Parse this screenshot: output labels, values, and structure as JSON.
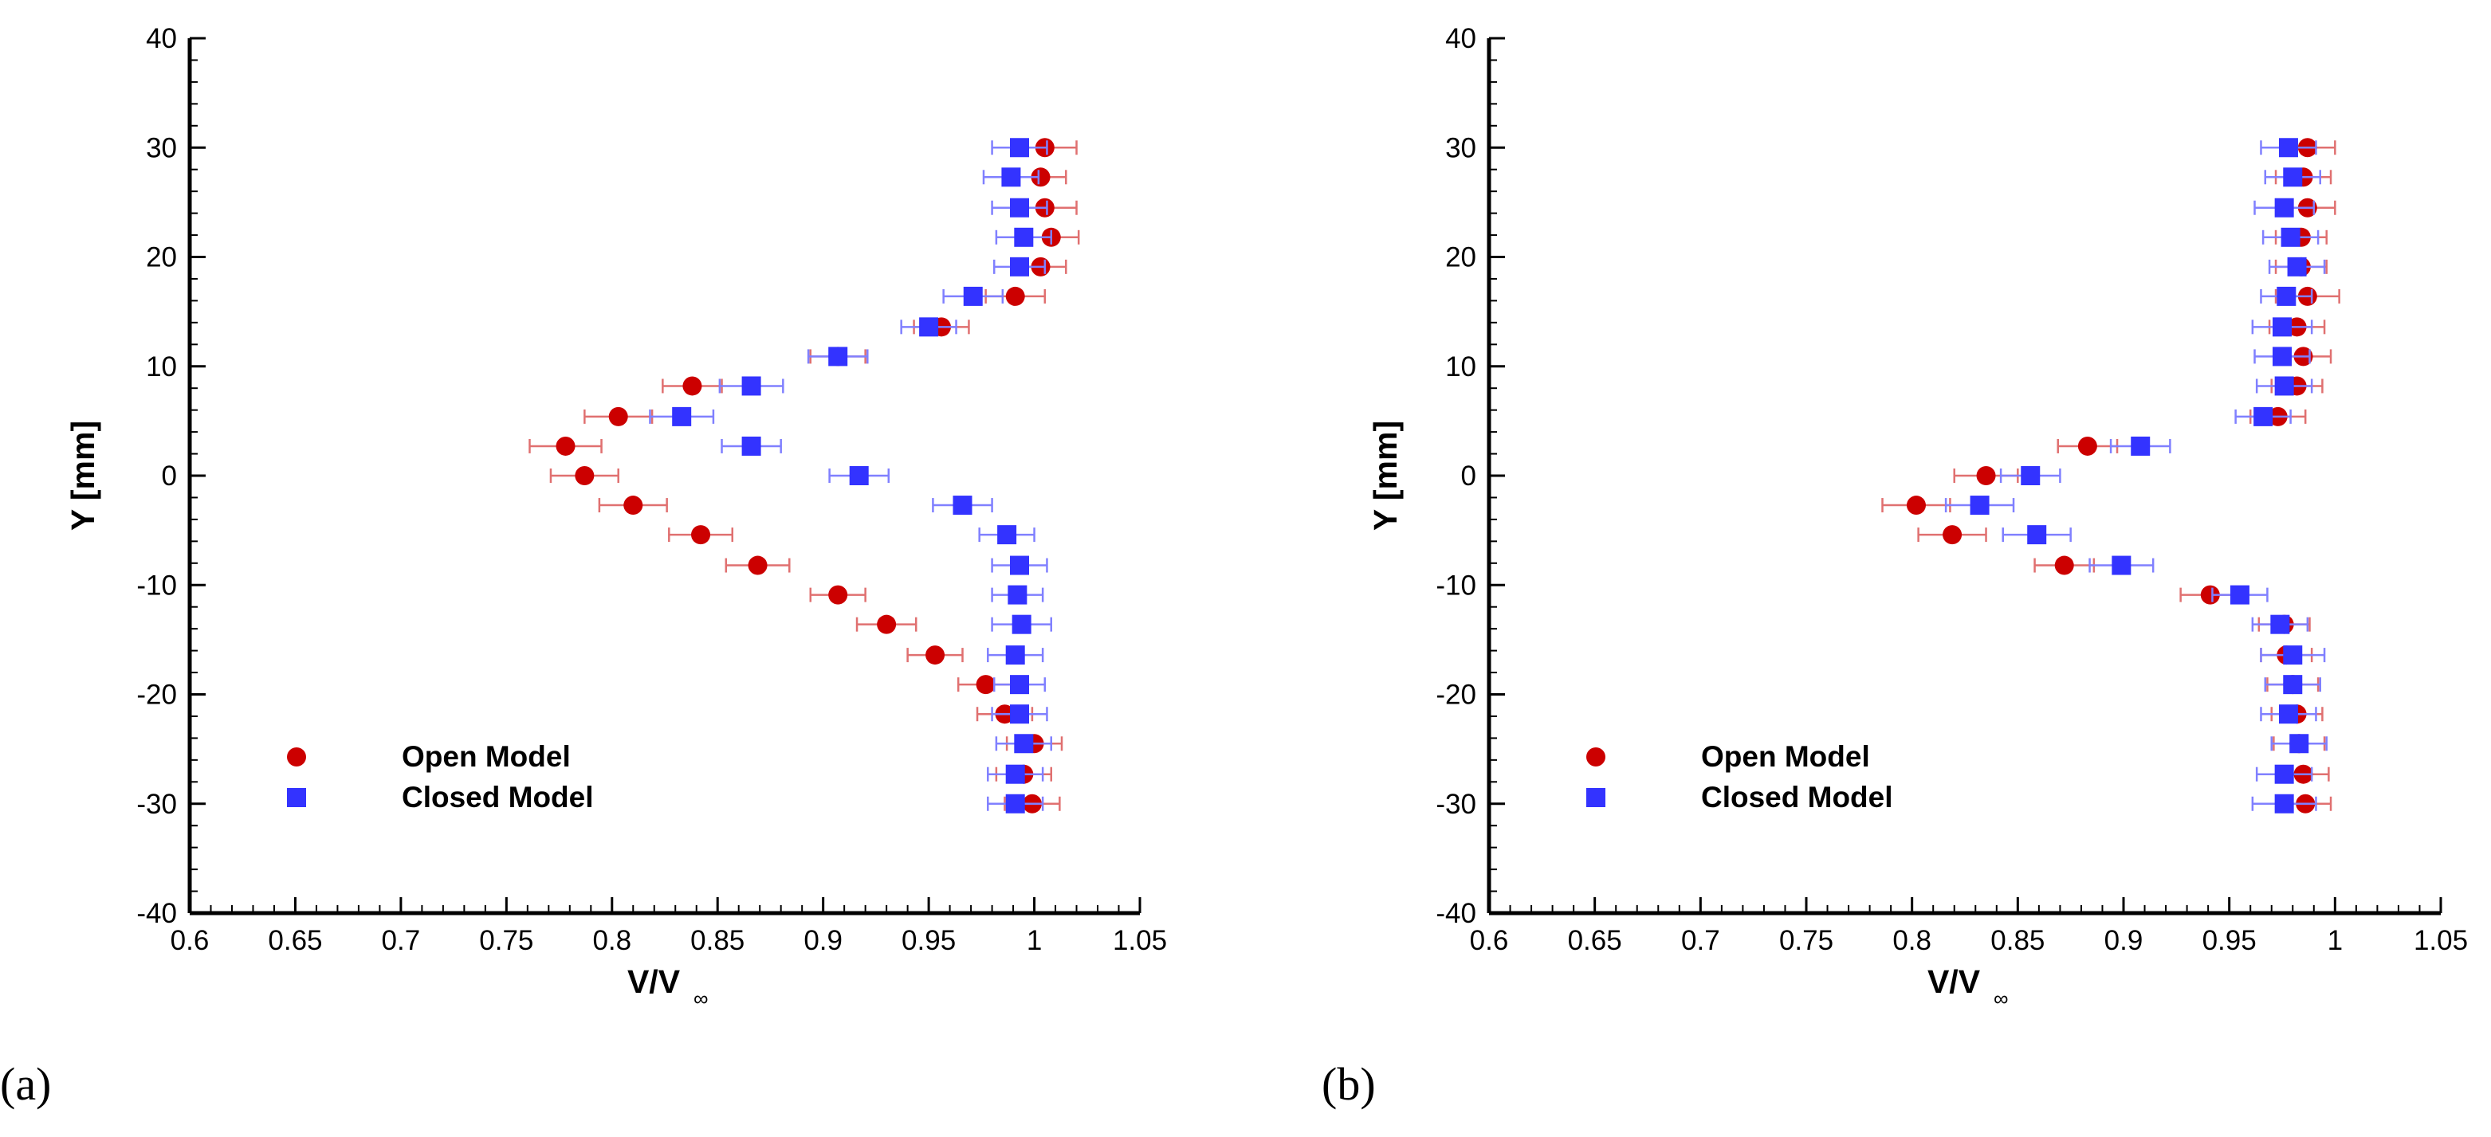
{
  "colors": {
    "open": "#cc0000",
    "open_err": "#e07070",
    "closed": "#3333ff",
    "closed_err": "#8080ff",
    "axis": "#000000"
  },
  "chart_data": [
    {
      "type": "scatter",
      "panel_label": "(a)",
      "xlabel": "V/V",
      "xlabel_sub": "∞",
      "ylabel": "Y [mm]",
      "xlim": [
        0.6,
        1.05
      ],
      "ylim": [
        -40,
        40
      ],
      "xticks": [
        "0.6",
        "0.65",
        "0.7",
        "0.75",
        "0.8",
        "0.85",
        "0.9",
        "0.95",
        "1",
        "1.05"
      ],
      "yticks": [
        "-40",
        "-30",
        "-20",
        "-10",
        "0",
        "10",
        "20",
        "30",
        "40"
      ],
      "grid": false,
      "legend_position": "bottom-left",
      "series": [
        {
          "name": "Open Model",
          "marker": "circle",
          "points": [
            {
              "x": 1.005,
              "y": 30.0,
              "err": 0.015
            },
            {
              "x": 1.003,
              "y": 27.3,
              "err": 0.012
            },
            {
              "x": 1.005,
              "y": 24.5,
              "err": 0.015
            },
            {
              "x": 1.008,
              "y": 21.8,
              "err": 0.013
            },
            {
              "x": 1.003,
              "y": 19.1,
              "err": 0.012
            },
            {
              "x": 0.991,
              "y": 16.4,
              "err": 0.014
            },
            {
              "x": 0.956,
              "y": 13.6,
              "err": 0.013
            },
            {
              "x": 0.907,
              "y": 10.9,
              "err": 0.013
            },
            {
              "x": 0.838,
              "y": 8.2,
              "err": 0.014
            },
            {
              "x": 0.803,
              "y": 5.4,
              "err": 0.016
            },
            {
              "x": 0.778,
              "y": 2.7,
              "err": 0.017
            },
            {
              "x": 0.787,
              "y": 0.0,
              "err": 0.016
            },
            {
              "x": 0.81,
              "y": -2.7,
              "err": 0.016
            },
            {
              "x": 0.842,
              "y": -5.4,
              "err": 0.015
            },
            {
              "x": 0.869,
              "y": -8.2,
              "err": 0.015
            },
            {
              "x": 0.907,
              "y": -10.9,
              "err": 0.013
            },
            {
              "x": 0.93,
              "y": -13.6,
              "err": 0.014
            },
            {
              "x": 0.953,
              "y": -16.4,
              "err": 0.013
            },
            {
              "x": 0.977,
              "y": -19.1,
              "err": 0.013
            },
            {
              "x": 0.986,
              "y": -21.8,
              "err": 0.013
            },
            {
              "x": 1.0,
              "y": -24.5,
              "err": 0.013
            },
            {
              "x": 0.995,
              "y": -27.3,
              "err": 0.013
            },
            {
              "x": 0.999,
              "y": -30.0,
              "err": 0.013
            }
          ]
        },
        {
          "name": "Closed Model",
          "marker": "square",
          "points": [
            {
              "x": 0.993,
              "y": 30.0,
              "err": 0.013
            },
            {
              "x": 0.989,
              "y": 27.3,
              "err": 0.013
            },
            {
              "x": 0.993,
              "y": 24.5,
              "err": 0.013
            },
            {
              "x": 0.995,
              "y": 21.8,
              "err": 0.013
            },
            {
              "x": 0.993,
              "y": 19.1,
              "err": 0.012
            },
            {
              "x": 0.971,
              "y": 16.4,
              "err": 0.014
            },
            {
              "x": 0.95,
              "y": 13.6,
              "err": 0.013
            },
            {
              "x": 0.907,
              "y": 10.9,
              "err": 0.014
            },
            {
              "x": 0.866,
              "y": 8.2,
              "err": 0.015
            },
            {
              "x": 0.833,
              "y": 5.4,
              "err": 0.015
            },
            {
              "x": 0.866,
              "y": 2.7,
              "err": 0.014
            },
            {
              "x": 0.917,
              "y": 0.0,
              "err": 0.014
            },
            {
              "x": 0.966,
              "y": -2.7,
              "err": 0.014
            },
            {
              "x": 0.987,
              "y": -5.4,
              "err": 0.013
            },
            {
              "x": 0.993,
              "y": -8.2,
              "err": 0.013
            },
            {
              "x": 0.992,
              "y": -10.9,
              "err": 0.012
            },
            {
              "x": 0.994,
              "y": -13.6,
              "err": 0.014
            },
            {
              "x": 0.991,
              "y": -16.4,
              "err": 0.013
            },
            {
              "x": 0.993,
              "y": -19.1,
              "err": 0.012
            },
            {
              "x": 0.993,
              "y": -21.8,
              "err": 0.013
            },
            {
              "x": 0.995,
              "y": -24.5,
              "err": 0.013
            },
            {
              "x": 0.991,
              "y": -27.3,
              "err": 0.013
            },
            {
              "x": 0.991,
              "y": -30.0,
              "err": 0.013
            }
          ]
        }
      ]
    },
    {
      "type": "scatter",
      "panel_label": "(b)",
      "xlabel": "V/V",
      "xlabel_sub": "∞",
      "ylabel": "Y [mm]",
      "xlim": [
        0.6,
        1.05
      ],
      "ylim": [
        -40,
        40
      ],
      "xticks": [
        "0.6",
        "0.65",
        "0.7",
        "0.75",
        "0.8",
        "0.85",
        "0.9",
        "0.95",
        "1",
        "1.05"
      ],
      "yticks": [
        "-40",
        "-30",
        "-20",
        "-10",
        "0",
        "10",
        "20",
        "30",
        "40"
      ],
      "grid": false,
      "legend_position": "bottom-left",
      "series": [
        {
          "name": "Open Model",
          "marker": "circle",
          "points": [
            {
              "x": 0.987,
              "y": 30.0,
              "err": 0.013
            },
            {
              "x": 0.985,
              "y": 27.3,
              "err": 0.013
            },
            {
              "x": 0.987,
              "y": 24.5,
              "err": 0.013
            },
            {
              "x": 0.984,
              "y": 21.8,
              "err": 0.012
            },
            {
              "x": 0.984,
              "y": 19.1,
              "err": 0.012
            },
            {
              "x": 0.987,
              "y": 16.4,
              "err": 0.015
            },
            {
              "x": 0.982,
              "y": 13.6,
              "err": 0.013
            },
            {
              "x": 0.985,
              "y": 10.9,
              "err": 0.013
            },
            {
              "x": 0.982,
              "y": 8.2,
              "err": 0.012
            },
            {
              "x": 0.973,
              "y": 5.4,
              "err": 0.013
            },
            {
              "x": 0.883,
              "y": 2.7,
              "err": 0.014
            },
            {
              "x": 0.835,
              "y": 0.0,
              "err": 0.015
            },
            {
              "x": 0.802,
              "y": -2.7,
              "err": 0.016
            },
            {
              "x": 0.819,
              "y": -5.4,
              "err": 0.016
            },
            {
              "x": 0.872,
              "y": -8.2,
              "err": 0.014
            },
            {
              "x": 0.941,
              "y": -10.9,
              "err": 0.014
            },
            {
              "x": 0.976,
              "y": -13.6,
              "err": 0.012
            },
            {
              "x": 0.977,
              "y": -16.4,
              "err": 0.012
            },
            {
              "x": 0.98,
              "y": -19.1,
              "err": 0.012
            },
            {
              "x": 0.982,
              "y": -21.8,
              "err": 0.012
            },
            {
              "x": 0.983,
              "y": -24.5,
              "err": 0.012
            },
            {
              "x": 0.985,
              "y": -27.3,
              "err": 0.012
            },
            {
              "x": 0.986,
              "y": -30.0,
              "err": 0.012
            }
          ]
        },
        {
          "name": "Closed Model",
          "marker": "square",
          "points": [
            {
              "x": 0.978,
              "y": 30.0,
              "err": 0.013
            },
            {
              "x": 0.98,
              "y": 27.3,
              "err": 0.013
            },
            {
              "x": 0.976,
              "y": 24.5,
              "err": 0.014
            },
            {
              "x": 0.979,
              "y": 21.8,
              "err": 0.013
            },
            {
              "x": 0.982,
              "y": 19.1,
              "err": 0.013
            },
            {
              "x": 0.977,
              "y": 16.4,
              "err": 0.012
            },
            {
              "x": 0.975,
              "y": 13.6,
              "err": 0.014
            },
            {
              "x": 0.975,
              "y": 10.9,
              "err": 0.013
            },
            {
              "x": 0.976,
              "y": 8.2,
              "err": 0.013
            },
            {
              "x": 0.966,
              "y": 5.4,
              "err": 0.013
            },
            {
              "x": 0.908,
              "y": 2.7,
              "err": 0.014
            },
            {
              "x": 0.856,
              "y": 0.0,
              "err": 0.014
            },
            {
              "x": 0.832,
              "y": -2.7,
              "err": 0.016
            },
            {
              "x": 0.859,
              "y": -5.4,
              "err": 0.016
            },
            {
              "x": 0.899,
              "y": -8.2,
              "err": 0.015
            },
            {
              "x": 0.955,
              "y": -10.9,
              "err": 0.013
            },
            {
              "x": 0.974,
              "y": -13.6,
              "err": 0.013
            },
            {
              "x": 0.98,
              "y": -16.4,
              "err": 0.015
            },
            {
              "x": 0.98,
              "y": -19.1,
              "err": 0.013
            },
            {
              "x": 0.978,
              "y": -21.8,
              "err": 0.013
            },
            {
              "x": 0.983,
              "y": -24.5,
              "err": 0.013
            },
            {
              "x": 0.976,
              "y": -27.3,
              "err": 0.013
            },
            {
              "x": 0.976,
              "y": -30.0,
              "err": 0.015
            }
          ]
        }
      ]
    }
  ]
}
